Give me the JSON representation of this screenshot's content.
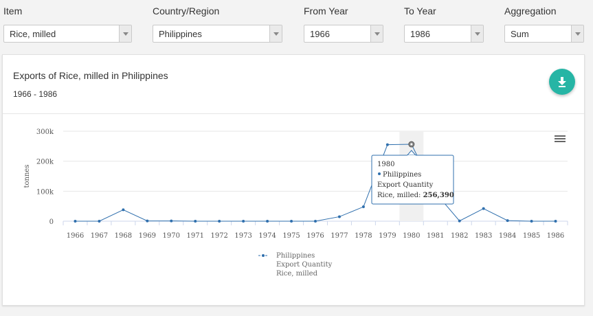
{
  "filters": [
    {
      "label": "Item",
      "value": "Rice, milled"
    },
    {
      "label": "Country/Region",
      "value": "Philippines"
    },
    {
      "label": "From Year",
      "value": "1966"
    },
    {
      "label": "To Year",
      "value": "1986"
    },
    {
      "label": "Aggregation",
      "value": "Sum"
    }
  ],
  "card": {
    "title": "Exports of Rice, milled in Philippines",
    "subtitle": "1966 - 1986",
    "download_icon": "download-icon",
    "menu_icon": "hamburger-menu-icon"
  },
  "colors": {
    "series": "#2f6fad",
    "accent": "#26b5a5",
    "highlight_band": "#f0f0f0"
  },
  "chart_data": {
    "type": "line",
    "ylabel": "tonnes",
    "yticks": [
      "0",
      "100k",
      "200k",
      "300k"
    ],
    "ylim": [
      0,
      300000
    ],
    "grid": true,
    "x": [
      "1966",
      "1967",
      "1968",
      "1969",
      "1970",
      "1971",
      "1972",
      "1973",
      "1974",
      "1975",
      "1976",
      "1977",
      "1978",
      "1979",
      "1980",
      "1981",
      "1982",
      "1983",
      "1984",
      "1985",
      "1986"
    ],
    "series": [
      {
        "name": "Philippines",
        "values": [
          0,
          0,
          38000,
          1000,
          1000,
          0,
          0,
          0,
          0,
          0,
          0,
          15000,
          48000,
          255000,
          256390,
          95000,
          1000,
          42000,
          2000,
          0,
          0
        ]
      }
    ],
    "legend": {
      "placement": "bottom-center",
      "lines": [
        "Philippines",
        "Export Quantity",
        "Rice, milled"
      ]
    },
    "tooltip": {
      "year": "1980",
      "series": "Philippines",
      "element": "Export Quantity",
      "item_prefix": "Rice, milled: ",
      "value_text": "256,390",
      "point_index": 14
    }
  }
}
